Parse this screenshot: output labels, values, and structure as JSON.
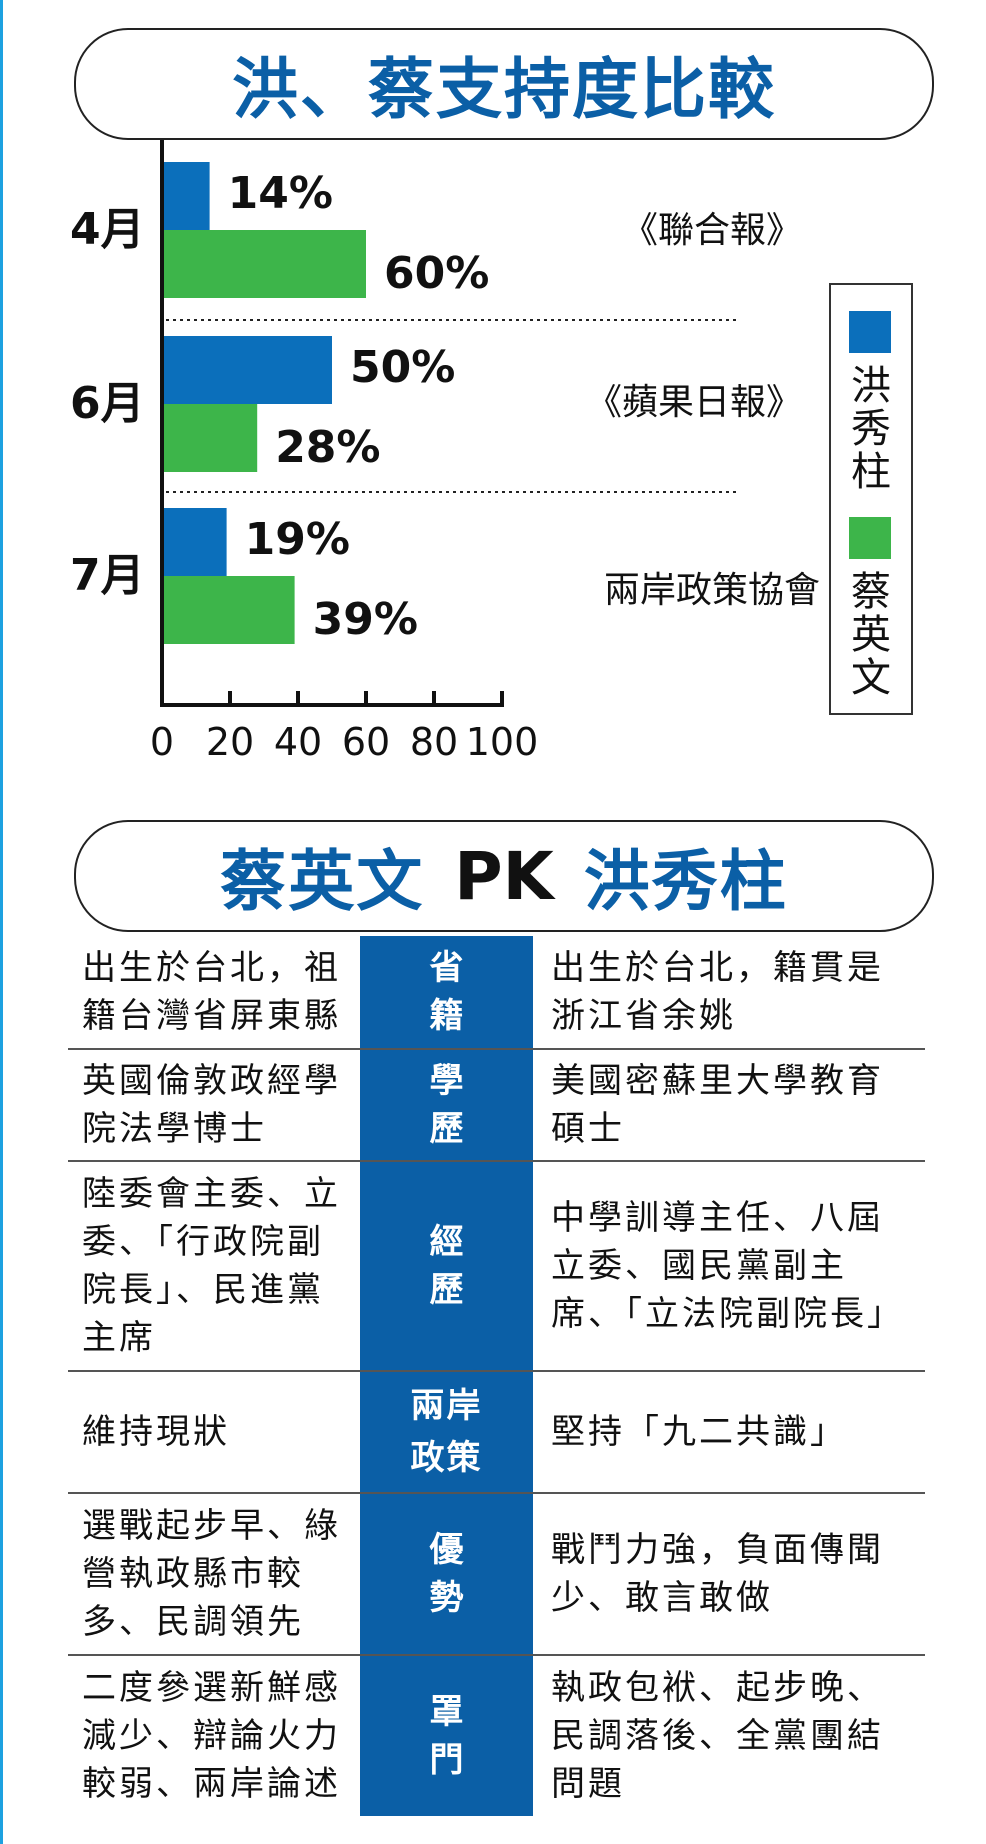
{
  "colors": {
    "hung": "#0b6fbb",
    "tsai": "#3db54a",
    "header_blue": "#0b5fa6",
    "accent_rule": "#1da1e0"
  },
  "chart_title": "洪、蔡支持度比較",
  "chart_data": {
    "type": "bar",
    "orientation": "horizontal",
    "categories": [
      "4月",
      "6月",
      "7月"
    ],
    "series": [
      {
        "name": "洪秀柱",
        "values": [
          14,
          50,
          19
        ]
      },
      {
        "name": "蔡英文",
        "values": [
          60,
          28,
          39
        ]
      }
    ],
    "data_labels": [
      [
        "14%",
        "60%"
      ],
      [
        "50%",
        "28%"
      ],
      [
        "19%",
        "39%"
      ]
    ],
    "sources": [
      "《聯合報》",
      "《蘋果日報》",
      "兩岸政策協會"
    ],
    "xlim": [
      0,
      100
    ],
    "xticks": [
      "0",
      "20",
      "40",
      "60",
      "80",
      "100"
    ],
    "legend_position": "right",
    "grid": false
  },
  "legend": {
    "hung": "洪秀柱",
    "tsai": "蔡英文"
  },
  "compare": {
    "title_left": "蔡英文",
    "title_pk": "PK",
    "title_right": "洪秀柱",
    "rows": [
      {
        "label": "省 籍",
        "tsai": "出生於台北，祖籍台灣省屏東縣",
        "hung": "出生於台北，籍貫是浙江省余姚"
      },
      {
        "label": "學 歷",
        "tsai": "英國倫敦政經學院法學博士",
        "hung": "美國密蘇里大學教育碩士"
      },
      {
        "label": "經 歷",
        "tsai": "陸委會主委、立委、「行政院副院長」、民進黨主席",
        "hung": "中學訓導主任、八屆立委、國民黨副主席、「立法院副院長」"
      },
      {
        "label": "兩岸政策",
        "tsai": "維持現狀",
        "hung": "堅持「九二共識」"
      },
      {
        "label": "優 勢",
        "tsai": "選戰起步早、綠營執政縣市較多、民調領先",
        "hung": "戰鬥力強，負面傳聞少、敢言敢做"
      },
      {
        "label": "罩 門",
        "tsai": "二度參選新鮮感減少、辯論火力較弱、兩岸論述",
        "hung": "執政包袱、起步晚、民調落後、全黨團結問題"
      }
    ]
  }
}
